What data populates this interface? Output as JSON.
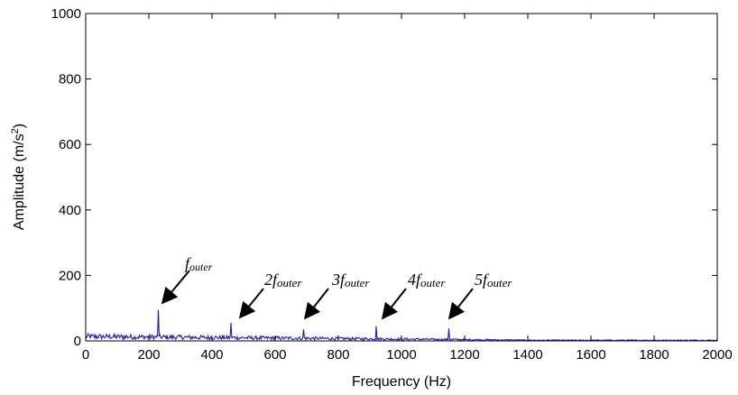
{
  "chart_data": {
    "type": "line",
    "title": "",
    "xlabel": "Frequency (Hz)",
    "ylabel": {
      "prefix": "Amplitude (m/s",
      "superscript": "2",
      "suffix": ")"
    },
    "xlim": [
      0,
      2000
    ],
    "ylim": [
      0,
      1000
    ],
    "xticks": [
      0,
      200,
      400,
      600,
      800,
      1000,
      1200,
      1400,
      1600,
      1800,
      2000
    ],
    "yticks": [
      0,
      200,
      400,
      600,
      800,
      1000
    ],
    "grid": false,
    "legend": "none",
    "line_color": "#1f1fa8",
    "series": [
      {
        "values_note_free": true,
        "peaks": [
          {
            "x": 230,
            "y": 95
          },
          {
            "x": 460,
            "y": 55
          },
          {
            "x": 690,
            "y": 35
          },
          {
            "x": 920,
            "y": 45
          },
          {
            "x": 1150,
            "y": 38
          }
        ],
        "noise_floor": {
          "x_start": 0,
          "x_end": 2000,
          "level_low": 20,
          "level_high": 3
        }
      }
    ],
    "annotations": [
      {
        "coefficient": "",
        "label": "f",
        "subscript": "outer"
      },
      {
        "coefficient": "2",
        "label": "f",
        "subscript": "outer"
      },
      {
        "coefficient": "3",
        "label": "f",
        "subscript": "outer"
      },
      {
        "coefficient": "4",
        "label": "f",
        "subscript": "outer"
      },
      {
        "coefficient": "5",
        "label": "f",
        "subscript": "outer"
      }
    ]
  }
}
